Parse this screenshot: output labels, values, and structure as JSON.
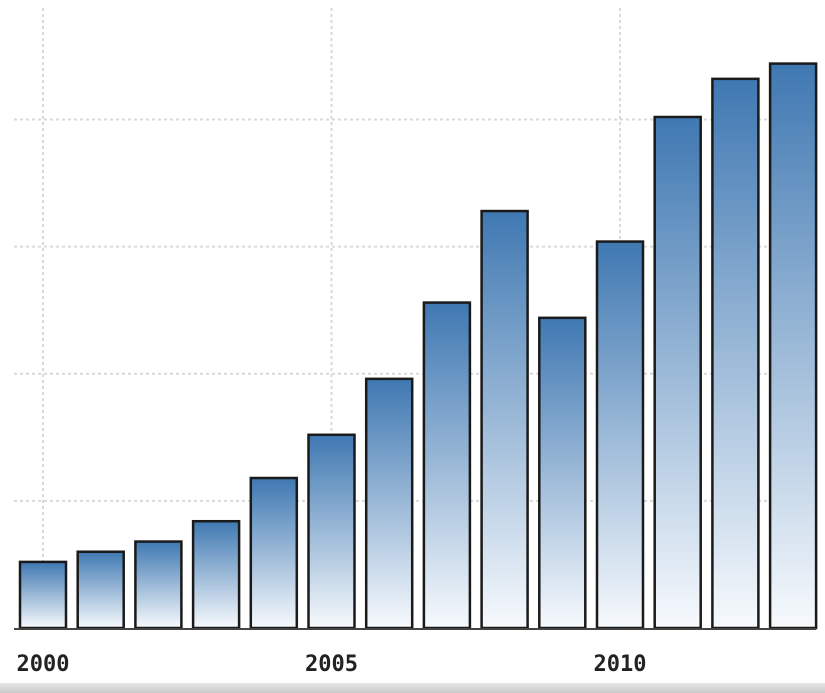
{
  "chart_data": {
    "type": "bar",
    "categories": [
      "2000",
      "2001",
      "2002",
      "2003",
      "2004",
      "2005",
      "2006",
      "2007",
      "2008",
      "2009",
      "2010",
      "2011",
      "2012",
      "2013"
    ],
    "values": [
      13,
      15,
      17,
      21,
      29.5,
      38,
      49,
      64,
      82,
      61,
      76,
      100.5,
      108,
      111
    ],
    "x_tick_labels": [
      {
        "label": "2000",
        "category": "2000"
      },
      {
        "label": "2005",
        "category": "2005"
      },
      {
        "label": "2010",
        "category": "2010"
      }
    ],
    "title": "",
    "xlabel": "",
    "ylabel": "",
    "ylim": [
      0,
      118
    ],
    "y_gridlines": [
      25,
      50,
      75,
      100
    ],
    "grid": true,
    "legend": "none",
    "colors": {
      "bar_top": "#3f78b2",
      "bar_bottom": "#f7fafd",
      "bar_stroke": "#1a1a1a",
      "grid": "#d9d9d9",
      "axis": "#444444",
      "tick_text": "#222222"
    }
  }
}
